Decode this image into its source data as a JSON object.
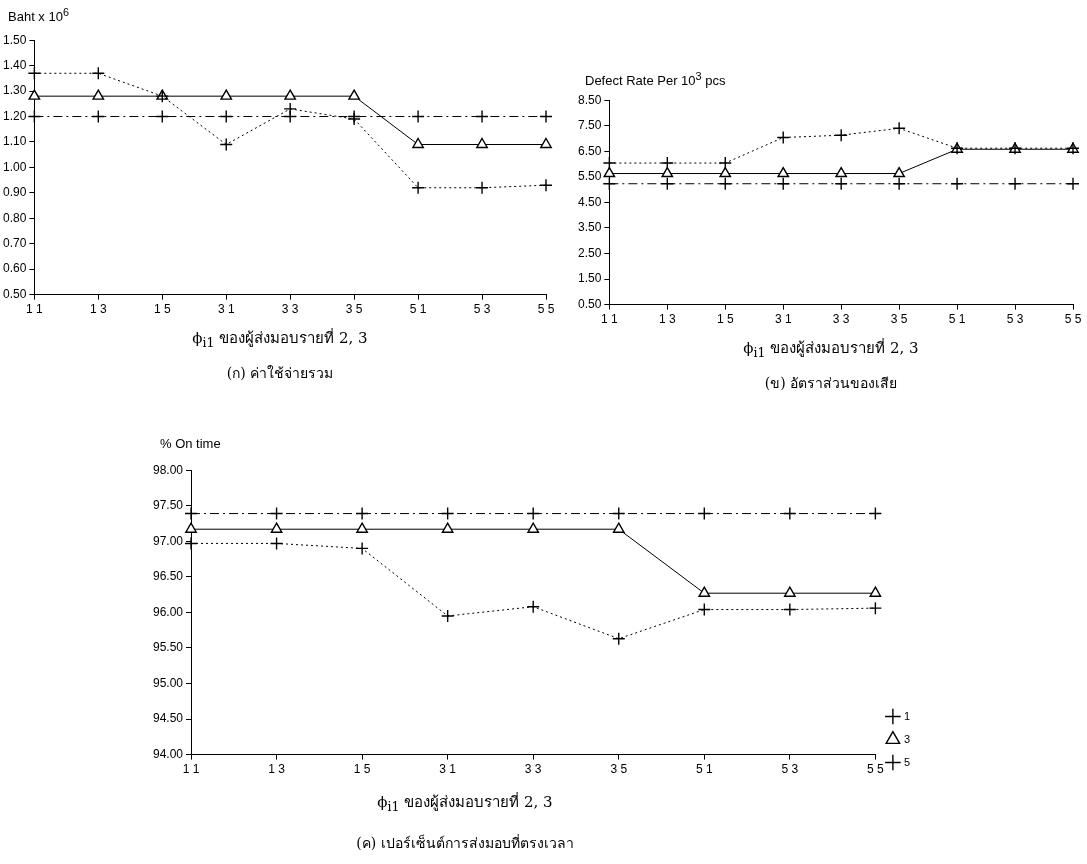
{
  "chart_data": [
    {
      "type": "line",
      "ylabel": "Baht x 10$^{6}$",
      "xlabel": "ϕ$_{i1}$ ของผู้ส่งมอบรายที่ 2, 3",
      "annotations": [
        "(ก) ค่าใช้จ่ายรวม"
      ],
      "categories": [
        "1 1",
        "1 3",
        "1 5",
        "3 1",
        "3 3",
        "3 5",
        "5 1",
        "5 3",
        "5 5"
      ],
      "ylim": [
        0.5,
        1.5
      ],
      "yticks": [
        {
          "value": 0.5,
          "label": "0.50"
        },
        {
          "value": 0.6,
          "label": "0.60"
        },
        {
          "value": 0.7,
          "label": "0.70"
        },
        {
          "value": 0.8,
          "label": "0.80"
        },
        {
          "value": 0.9,
          "label": "0.90"
        },
        {
          "value": 1.0,
          "label": "1.00"
        },
        {
          "value": 1.1,
          "label": "1.10"
        },
        {
          "value": 1.2,
          "label": "1.20"
        },
        {
          "value": 1.3,
          "label": "1.30"
        },
        {
          "value": 1.4,
          "label": "1.40"
        },
        {
          "value": 1.5,
          "label": "1.50"
        }
      ],
      "grid": false,
      "legend": false,
      "series": [
        {
          "color": "#000000",
          "marker": "cross",
          "line_style": "dotted",
          "values": [
            1.37,
            1.37,
            1.28,
            1.09,
            1.23,
            1.19,
            0.92,
            0.92,
            0.93
          ]
        },
        {
          "color": "#000000",
          "marker": "triangle",
          "line_style": "solid",
          "values": [
            1.28,
            1.28,
            1.28,
            1.28,
            1.28,
            1.28,
            1.09,
            1.09,
            1.09
          ]
        },
        {
          "color": "#000000",
          "marker": "cross",
          "line_style": "dashed",
          "values": [
            1.2,
            1.2,
            1.2,
            1.2,
            1.2,
            1.2,
            1.2,
            1.2,
            1.2
          ]
        }
      ]
    },
    {
      "type": "line",
      "ylabel": "Defect Rate Per 10$^{3}$ pcs",
      "xlabel": "ϕ$_{i1}$ ของผู้ส่งมอบรายที่ 2, 3",
      "annotations": [
        "(ข) อัตราส่วนของเสีย"
      ],
      "categories": [
        "1 1",
        "1 3",
        "1 5",
        "3 1",
        "3 3",
        "3 5",
        "5 1",
        "5 3",
        "5 5"
      ],
      "ylim": [
        0.5,
        8.5
      ],
      "yticks": [
        {
          "value": 0.5,
          "label": "0.50"
        },
        {
          "value": 1.5,
          "label": "1.50"
        },
        {
          "value": 2.5,
          "label": "2.50"
        },
        {
          "value": 3.5,
          "label": "3.50"
        },
        {
          "value": 4.5,
          "label": "4.50"
        },
        {
          "value": 5.5,
          "label": "5.50"
        },
        {
          "value": 6.5,
          "label": "6.50"
        },
        {
          "value": 7.5,
          "label": "7.50"
        },
        {
          "value": 8.5,
          "label": "8.50"
        }
      ],
      "grid": false,
      "legend": false,
      "series": [
        {
          "color": "#000000",
          "marker": "cross",
          "line_style": "dotted",
          "values": [
            6.04,
            6.04,
            6.04,
            7.04,
            7.13,
            7.4,
            6.62,
            6.62,
            6.62
          ]
        },
        {
          "color": "#000000",
          "marker": "triangle",
          "line_style": "solid",
          "values": [
            5.63,
            5.63,
            5.63,
            5.63,
            5.63,
            5.63,
            6.58,
            6.58,
            6.58
          ]
        },
        {
          "color": "#000000",
          "marker": "cross",
          "line_style": "dashed",
          "values": [
            5.23,
            5.23,
            5.23,
            5.23,
            5.23,
            5.23,
            5.23,
            5.23,
            5.23
          ]
        }
      ]
    },
    {
      "type": "line",
      "ylabel": "% On time",
      "xlabel": "ϕ$_{i1}$ ของผู้ส่งมอบรายที่ 2, 3",
      "annotations": [
        "(ค) เปอร์เซ็นต์การส่งมอบที่ตรงเวลา"
      ],
      "categories": [
        "1 1",
        "1 3",
        "1 5",
        "3 1",
        "3 3",
        "3 5",
        "5 1",
        "5 3",
        "5 5"
      ],
      "ylim": [
        94,
        98
      ],
      "yticks": [
        {
          "value": 94,
          "label": "94.00"
        },
        {
          "value": 94.5,
          "label": "94.50"
        },
        {
          "value": 95,
          "label": "95.00"
        },
        {
          "value": 95.5,
          "label": "95.50"
        },
        {
          "value": 96,
          "label": "96.00"
        },
        {
          "value": 96.5,
          "label": "96.50"
        },
        {
          "value": 97,
          "label": "97.00"
        },
        {
          "value": 97.5,
          "label": "97.50"
        },
        {
          "value": 98,
          "label": "98.00"
        }
      ],
      "grid": false,
      "legend": "right",
      "series": [
        {
          "name": "1",
          "color": "#000000",
          "marker": "cross",
          "line_style": "dotted",
          "values": [
            96.97,
            96.97,
            96.9,
            95.95,
            96.08,
            95.63,
            96.04,
            96.04,
            96.06
          ]
        },
        {
          "name": "3",
          "color": "#000000",
          "marker": "triangle",
          "line_style": "solid",
          "values": [
            97.17,
            97.17,
            97.17,
            97.17,
            97.17,
            97.17,
            96.27,
            96.27,
            96.27
          ]
        },
        {
          "name": "5",
          "color": "#000000",
          "marker": "cross",
          "line_style": "dashed",
          "values": [
            97.39,
            97.39,
            97.39,
            97.39,
            97.39,
            97.39,
            97.39,
            97.39,
            97.39
          ]
        }
      ]
    }
  ]
}
